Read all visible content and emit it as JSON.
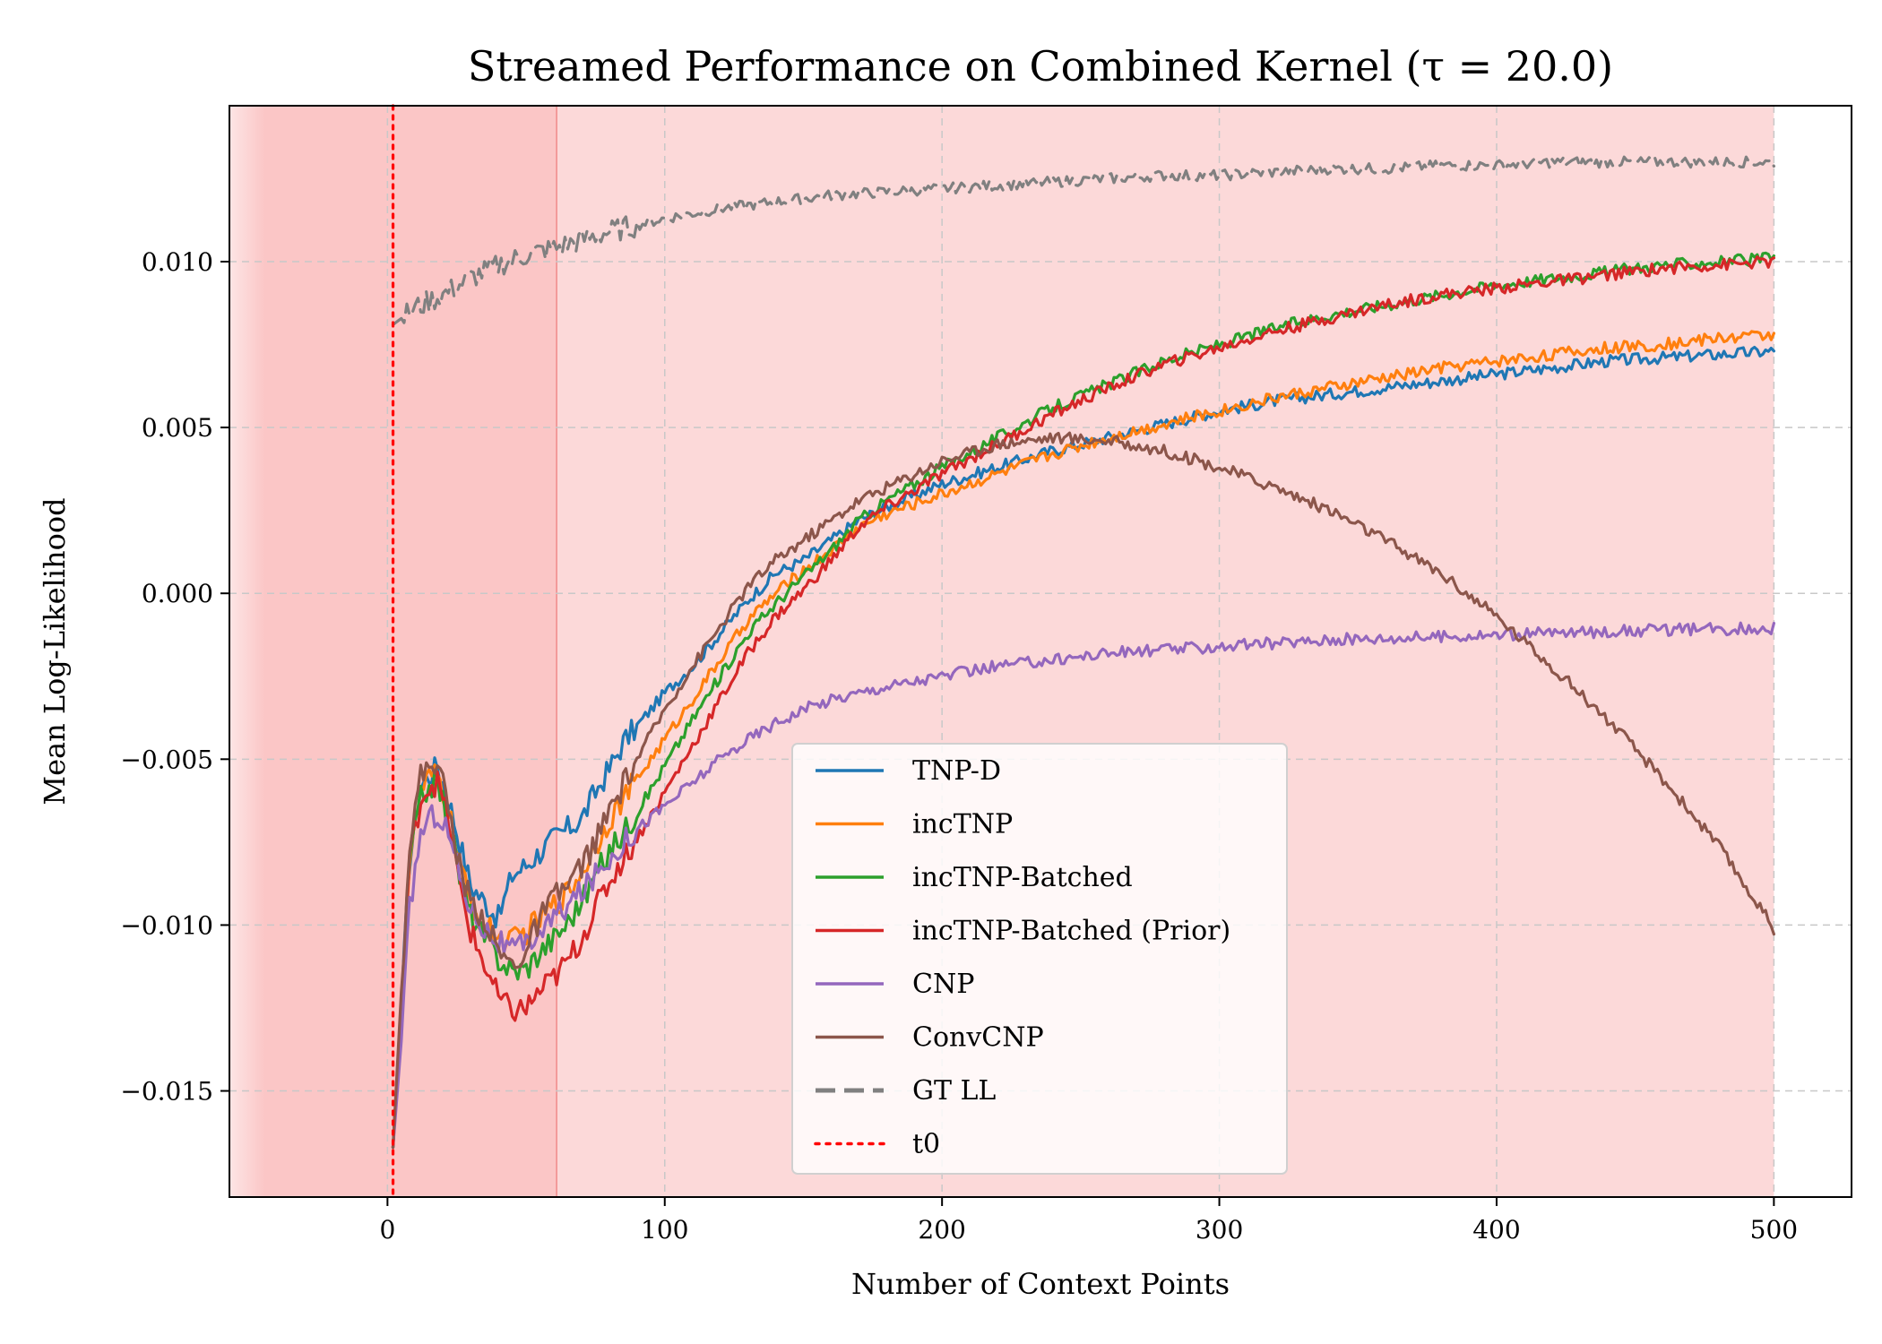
{
  "chart_data": {
    "type": "line",
    "title": "Streamed Performance on Combined Kernel (τ = 20.0)",
    "xlabel": "Number of Context Points",
    "ylabel": "Mean Log-Likelihood",
    "xlim": [
      -57,
      528
    ],
    "ylim": [
      -0.0182,
      0.0147
    ],
    "xticks": [
      0,
      100,
      200,
      300,
      400,
      500
    ],
    "yticks": [
      -0.015,
      -0.01,
      -0.005,
      0.0,
      0.005,
      0.01
    ],
    "xtick_labels": [
      "0",
      "100",
      "200",
      "300",
      "400",
      "500"
    ],
    "ytick_labels": [
      "−0.015",
      "−0.010",
      "−0.005",
      "0.000",
      "0.005",
      "0.010"
    ],
    "grid": true,
    "legend_position": "lower-center",
    "shaded_regions": [
      {
        "x": [
          -57,
          61
        ],
        "color": "#f9a0a0",
        "opacity": 0.6
      },
      {
        "x": [
          61,
          500
        ],
        "color": "#fbc4c4",
        "opacity": 0.65
      }
    ],
    "t0": 2,
    "series": [
      {
        "name": "TNP-D",
        "color": "#1f77b4",
        "style": "solid",
        "x": [
          2,
          5,
          8,
          12,
          15,
          18,
          22,
          26,
          30,
          35,
          40,
          45,
          50,
          55,
          60,
          65,
          70,
          75,
          80,
          85,
          90,
          100,
          110,
          120,
          130,
          140,
          150,
          160,
          170,
          180,
          200,
          220,
          240,
          260,
          280,
          300,
          320,
          340,
          360,
          380,
          400,
          420,
          440,
          460,
          480,
          500
        ],
        "y": [
          -0.0167,
          -0.0125,
          -0.008,
          -0.0058,
          -0.0055,
          -0.0052,
          -0.0062,
          -0.0075,
          -0.0088,
          -0.0093,
          -0.0098,
          -0.0085,
          -0.0082,
          -0.0078,
          -0.0074,
          -0.0071,
          -0.0068,
          -0.006,
          -0.0053,
          -0.0045,
          -0.004,
          -0.003,
          -0.0022,
          -0.0012,
          -0.0002,
          0.0006,
          0.001,
          0.0016,
          0.0022,
          0.0026,
          0.0033,
          0.0038,
          0.0043,
          0.0047,
          0.0051,
          0.0055,
          0.0058,
          0.006,
          0.0062,
          0.0064,
          0.0066,
          0.0068,
          0.007,
          0.0071,
          0.0072,
          0.0073
        ]
      },
      {
        "name": "incTNP",
        "color": "#ff7f0e",
        "style": "solid",
        "x": [
          2,
          5,
          8,
          12,
          15,
          18,
          22,
          26,
          30,
          35,
          40,
          45,
          50,
          55,
          60,
          65,
          70,
          75,
          80,
          85,
          90,
          100,
          110,
          120,
          130,
          140,
          150,
          160,
          170,
          180,
          200,
          220,
          240,
          260,
          280,
          300,
          320,
          340,
          360,
          380,
          400,
          420,
          440,
          460,
          480,
          500
        ],
        "y": [
          -0.0167,
          -0.0125,
          -0.008,
          -0.006,
          -0.0056,
          -0.0055,
          -0.0065,
          -0.0082,
          -0.0094,
          -0.01,
          -0.0104,
          -0.0105,
          -0.0102,
          -0.0098,
          -0.0094,
          -0.009,
          -0.0084,
          -0.0076,
          -0.0068,
          -0.0062,
          -0.0056,
          -0.0044,
          -0.0032,
          -0.002,
          -0.0008,
          0.0,
          0.0007,
          0.0013,
          0.002,
          0.0024,
          0.003,
          0.0036,
          0.0042,
          0.0047,
          0.0051,
          0.0055,
          0.0059,
          0.0062,
          0.0065,
          0.0068,
          0.007,
          0.0072,
          0.0074,
          0.0075,
          0.0077,
          0.0078
        ]
      },
      {
        "name": "incTNP-Batched",
        "color": "#2ca02c",
        "style": "solid",
        "x": [
          2,
          5,
          8,
          12,
          15,
          18,
          22,
          26,
          30,
          35,
          40,
          45,
          50,
          55,
          60,
          65,
          70,
          75,
          80,
          85,
          90,
          100,
          110,
          120,
          130,
          140,
          150,
          160,
          170,
          180,
          200,
          220,
          240,
          260,
          280,
          300,
          320,
          340,
          360,
          380,
          400,
          420,
          440,
          460,
          480,
          500
        ],
        "y": [
          -0.0167,
          -0.0125,
          -0.008,
          -0.0062,
          -0.0058,
          -0.0057,
          -0.0068,
          -0.0085,
          -0.0097,
          -0.0104,
          -0.011,
          -0.0114,
          -0.0113,
          -0.0108,
          -0.0104,
          -0.0099,
          -0.0093,
          -0.0085,
          -0.0078,
          -0.0072,
          -0.0066,
          -0.0052,
          -0.0038,
          -0.0025,
          -0.0012,
          -0.0003,
          0.0005,
          0.0013,
          0.0022,
          0.0028,
          0.0038,
          0.0047,
          0.0056,
          0.0063,
          0.007,
          0.0075,
          0.008,
          0.0084,
          0.0087,
          0.009,
          0.0093,
          0.0095,
          0.0097,
          0.0099,
          0.01,
          0.0101
        ]
      },
      {
        "name": "incTNP-Batched (Prior)",
        "color": "#d62728",
        "style": "solid",
        "x": [
          2,
          5,
          8,
          12,
          15,
          18,
          22,
          26,
          30,
          35,
          40,
          45,
          50,
          55,
          60,
          65,
          70,
          75,
          80,
          85,
          90,
          100,
          110,
          120,
          130,
          140,
          150,
          160,
          170,
          180,
          200,
          220,
          240,
          260,
          280,
          300,
          320,
          340,
          360,
          380,
          400,
          420,
          440,
          460,
          480,
          500
        ],
        "y": [
          -0.0167,
          -0.0125,
          -0.008,
          -0.0062,
          -0.0058,
          -0.0057,
          -0.0068,
          -0.0088,
          -0.0102,
          -0.0112,
          -0.0122,
          -0.0126,
          -0.0125,
          -0.012,
          -0.0116,
          -0.0111,
          -0.0104,
          -0.0095,
          -0.0087,
          -0.008,
          -0.0074,
          -0.006,
          -0.0046,
          -0.0032,
          -0.0018,
          -0.0007,
          0.0001,
          0.001,
          0.002,
          0.0026,
          0.0036,
          0.0045,
          0.0054,
          0.0062,
          0.0069,
          0.0074,
          0.0079,
          0.0083,
          0.0087,
          0.009,
          0.0092,
          0.0094,
          0.0096,
          0.0098,
          0.0099,
          0.01
        ]
      },
      {
        "name": "CNP",
        "color": "#9467bd",
        "style": "solid",
        "x": [
          2,
          5,
          8,
          12,
          15,
          18,
          22,
          26,
          30,
          35,
          40,
          45,
          50,
          55,
          60,
          65,
          70,
          75,
          80,
          85,
          90,
          100,
          110,
          120,
          130,
          140,
          150,
          160,
          170,
          180,
          200,
          220,
          240,
          260,
          280,
          300,
          320,
          340,
          360,
          380,
          400,
          420,
          440,
          460,
          480,
          500
        ],
        "y": [
          -0.0167,
          -0.0135,
          -0.0095,
          -0.0072,
          -0.0068,
          -0.0066,
          -0.0072,
          -0.0085,
          -0.0095,
          -0.0101,
          -0.0105,
          -0.0108,
          -0.0106,
          -0.0102,
          -0.0098,
          -0.0094,
          -0.009,
          -0.0085,
          -0.008,
          -0.0075,
          -0.0071,
          -0.0064,
          -0.0057,
          -0.005,
          -0.0044,
          -0.0039,
          -0.0035,
          -0.0032,
          -0.003,
          -0.0028,
          -0.0025,
          -0.0022,
          -0.002,
          -0.0018,
          -0.0017,
          -0.0016,
          -0.0015,
          -0.0014,
          -0.00135,
          -0.0013,
          -0.00125,
          -0.0012,
          -0.00115,
          -0.0011,
          -0.00108,
          -0.00105
        ]
      },
      {
        "name": "ConvCNP",
        "color": "#8c564b",
        "style": "solid",
        "x": [
          2,
          5,
          8,
          12,
          15,
          18,
          22,
          26,
          30,
          35,
          40,
          45,
          50,
          55,
          60,
          65,
          70,
          75,
          80,
          85,
          90,
          100,
          110,
          120,
          130,
          140,
          150,
          160,
          170,
          180,
          200,
          220,
          240,
          260,
          280,
          300,
          320,
          340,
          360,
          380,
          400,
          420,
          440,
          460,
          480,
          500
        ],
        "y": [
          -0.0167,
          -0.012,
          -0.0075,
          -0.0055,
          -0.0052,
          -0.005,
          -0.0065,
          -0.0082,
          -0.0093,
          -0.0098,
          -0.0108,
          -0.0112,
          -0.0108,
          -0.0098,
          -0.0092,
          -0.0088,
          -0.0082,
          -0.0075,
          -0.0066,
          -0.0058,
          -0.005,
          -0.0035,
          -0.0022,
          -0.001,
          0.0002,
          0.001,
          0.0016,
          0.0022,
          0.0028,
          0.0032,
          0.004,
          0.0045,
          0.0047,
          0.0046,
          0.0043,
          0.0038,
          0.0032,
          0.0025,
          0.0016,
          0.0006,
          -0.0007,
          -0.0022,
          -0.0038,
          -0.0056,
          -0.0076,
          -0.0101
        ]
      },
      {
        "name": "GT LL",
        "color": "#808080",
        "style": "dashed",
        "x": [
          2,
          10,
          20,
          30,
          40,
          50,
          60,
          80,
          100,
          120,
          140,
          160,
          180,
          200,
          220,
          240,
          260,
          280,
          300,
          320,
          340,
          360,
          380,
          400,
          420,
          440,
          460,
          480,
          500
        ],
        "y": [
          0.0081,
          0.0086,
          0.009,
          0.0095,
          0.0099,
          0.0102,
          0.0104,
          0.0109,
          0.0113,
          0.0116,
          0.0118,
          0.012,
          0.0121,
          0.0122,
          0.0123,
          0.0124,
          0.0125,
          0.0126,
          0.0126,
          0.0127,
          0.0128,
          0.0128,
          0.0129,
          0.0129,
          0.013,
          0.013,
          0.013,
          0.013,
          0.013
        ]
      }
    ],
    "legend": [
      {
        "label": "TNP-D",
        "color": "#1f77b4",
        "style": "solid"
      },
      {
        "label": "incTNP",
        "color": "#ff7f0e",
        "style": "solid"
      },
      {
        "label": "incTNP-Batched",
        "color": "#2ca02c",
        "style": "solid"
      },
      {
        "label": "incTNP-Batched (Prior)",
        "color": "#d62728",
        "style": "solid"
      },
      {
        "label": "CNP",
        "color": "#9467bd",
        "style": "solid"
      },
      {
        "label": "ConvCNP",
        "color": "#8c564b",
        "style": "solid"
      },
      {
        "label": "GT LL",
        "color": "#808080",
        "style": "dashed"
      },
      {
        "label": "t0",
        "color": "#ff0000",
        "style": "dotted"
      }
    ]
  }
}
